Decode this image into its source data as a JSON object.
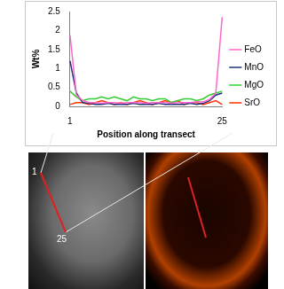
{
  "chart_data": {
    "type": "line",
    "x_label": "Position along transect",
    "y_label": "Wt%",
    "categories": [
      "1",
      null,
      null,
      null,
      null,
      null,
      null,
      null,
      null,
      null,
      null,
      null,
      null,
      null,
      null,
      null,
      null,
      null,
      null,
      null,
      null,
      null,
      null,
      null,
      "25"
    ],
    "series": [
      {
        "name": "FeO",
        "color": "#ff66cc",
        "values": [
          1.88,
          0.3,
          0.15,
          0.1,
          0.1,
          0.08,
          0.1,
          0.1,
          0.08,
          0.1,
          0.1,
          0.1,
          0.08,
          0.1,
          0.1,
          0.1,
          0.08,
          0.1,
          0.1,
          0.1,
          0.12,
          0.12,
          0.18,
          0.35,
          2.35
        ]
      },
      {
        "name": "MnO",
        "color": "#1f2f7a",
        "values": [
          1.2,
          0.35,
          0.1,
          0.08,
          0.05,
          0.05,
          0.08,
          0.05,
          0.05,
          0.05,
          0.08,
          0.05,
          0.05,
          0.05,
          0.08,
          0.05,
          0.05,
          0.05,
          0.05,
          0.08,
          0.05,
          0.08,
          0.15,
          0.3,
          0.35
        ]
      },
      {
        "name": "MgO",
        "color": "#33cc33",
        "values": [
          0.4,
          0.25,
          0.15,
          0.2,
          0.2,
          0.25,
          0.2,
          0.25,
          0.2,
          0.15,
          0.25,
          0.2,
          0.2,
          0.15,
          0.2,
          0.2,
          0.1,
          0.15,
          0.2,
          0.2,
          0.15,
          0.2,
          0.3,
          0.35,
          0.4
        ]
      },
      {
        "name": "SrO",
        "color": "#ff3300",
        "values": [
          0.05,
          0.1,
          0.1,
          0.05,
          0.1,
          0.15,
          0.1,
          0.05,
          0.1,
          0.05,
          0.1,
          0.15,
          0.1,
          0.05,
          0.1,
          0.15,
          0.1,
          0.15,
          0.05,
          0.1,
          0.1,
          0.05,
          0.1,
          0.15,
          0.05
        ]
      }
    ],
    "ylim": [
      0,
      2.5
    ],
    "yticks": [
      0,
      0.5,
      1,
      1.5,
      2,
      2.5
    ],
    "grid": false,
    "legend": "right",
    "annotations": [
      "1",
      "25"
    ]
  }
}
